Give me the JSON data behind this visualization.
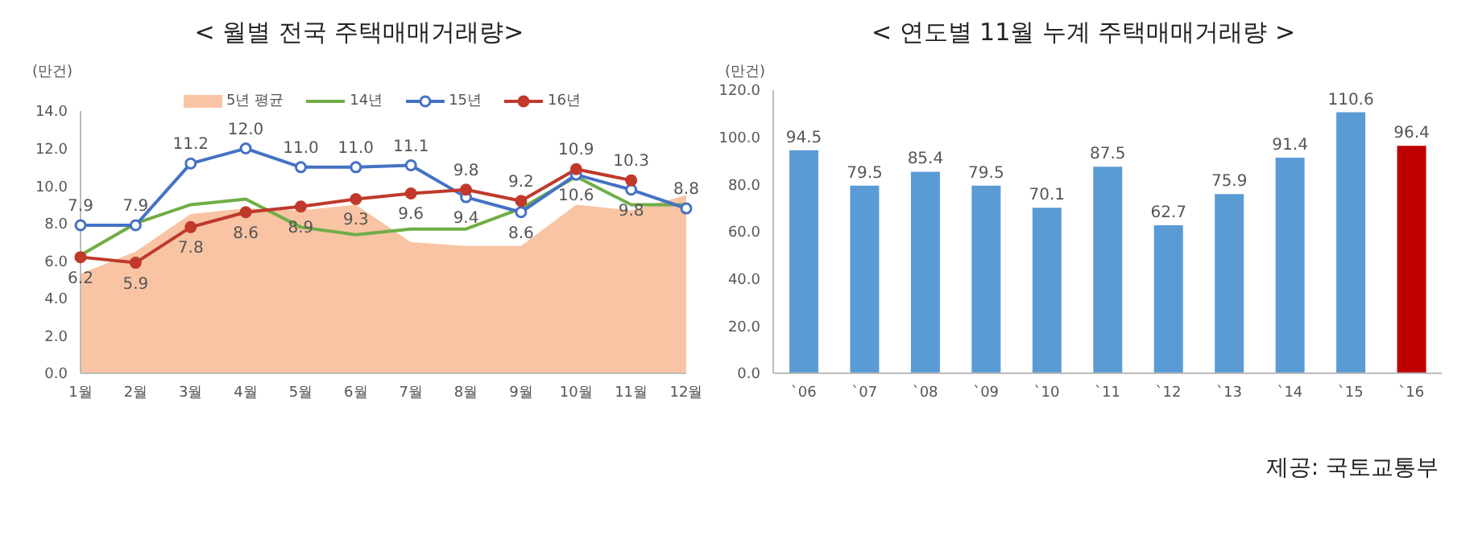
{
  "chart_data": [
    {
      "type": "line",
      "title": "< 월별 전국 주택매매거래량>",
      "ylabel": "(만건)",
      "categories": [
        "1월",
        "2월",
        "3월",
        "4월",
        "5월",
        "6월",
        "7월",
        "8월",
        "9월",
        "10월",
        "11월",
        "12월"
      ],
      "ylim": [
        0,
        14
      ],
      "yticks": [
        {
          "value": 0,
          "label": "0.0"
        },
        {
          "value": 2,
          "label": "2.0"
        },
        {
          "value": 4,
          "label": "4.0"
        },
        {
          "value": 6,
          "label": "6.0"
        },
        {
          "value": 8,
          "label": "8.0"
        },
        {
          "value": 10,
          "label": "10.0"
        },
        {
          "value": 12,
          "label": "12.0"
        },
        {
          "value": 14,
          "label": "14.0"
        }
      ],
      "legend": "top",
      "series": [
        {
          "name": "5년 평균",
          "type": "area",
          "color": "#f8c4a4",
          "values": [
            5.3,
            6.5,
            8.5,
            8.8,
            8.7,
            9.0,
            7.0,
            6.8,
            6.8,
            9.0,
            8.7,
            9.5
          ]
        },
        {
          "name": "14년",
          "type": "line",
          "color": "#70ad47",
          "marker": "none",
          "values": [
            6.3,
            8.0,
            9.0,
            9.3,
            7.8,
            7.4,
            7.7,
            7.7,
            8.8,
            10.5,
            9.0,
            9.0
          ]
        },
        {
          "name": "15년",
          "type": "line",
          "color": "#4472c4",
          "marker": "circle",
          "values": [
            7.9,
            7.9,
            11.2,
            12.0,
            11.0,
            11.0,
            11.1,
            9.4,
            8.6,
            10.6,
            9.8,
            8.8
          ],
          "value_labels": [
            "7.9",
            "7.9",
            "11.2",
            "12.0",
            "11.0",
            "11.0",
            "11.1",
            "9.4",
            "8.6",
            "10.6",
            "9.8",
            "8.8"
          ]
        },
        {
          "name": "16년",
          "type": "line",
          "color": "#c0392b",
          "marker": "circle",
          "values": [
            6.2,
            5.9,
            7.8,
            8.6,
            8.9,
            9.3,
            9.6,
            9.8,
            9.2,
            10.9,
            10.3,
            null
          ],
          "value_labels": [
            "6.2",
            "5.9",
            "7.8",
            "8.6",
            "8.9",
            "9.3",
            "9.6",
            "9.8",
            "9.2",
            "10.9",
            "10.3",
            null
          ]
        }
      ]
    },
    {
      "type": "bar",
      "title": "< 연도별 11월 누계 주택매매거래량 >",
      "ylabel": "(만건)",
      "categories": [
        "`06",
        "`07",
        "`08",
        "`09",
        "`10",
        "`11",
        "`12",
        "`13",
        "`14",
        "`15",
        "`16"
      ],
      "values": [
        94.5,
        79.5,
        85.4,
        79.5,
        70.1,
        87.5,
        62.7,
        75.9,
        91.4,
        110.6,
        96.4
      ],
      "colors": [
        "#5b9bd5",
        "#5b9bd5",
        "#5b9bd5",
        "#5b9bd5",
        "#5b9bd5",
        "#5b9bd5",
        "#5b9bd5",
        "#5b9bd5",
        "#5b9bd5",
        "#5b9bd5",
        "#c00000"
      ],
      "ylim": [
        0,
        120
      ],
      "yticks": [
        {
          "value": 0,
          "label": "0.0"
        },
        {
          "value": 20,
          "label": "20.0"
        },
        {
          "value": 40,
          "label": "40.0"
        },
        {
          "value": 60,
          "label": "60.0"
        },
        {
          "value": 80,
          "label": "80.0"
        },
        {
          "value": 100,
          "label": "100.0"
        },
        {
          "value": 120,
          "label": "120.0"
        }
      ],
      "data_labels": true,
      "annotations": [
        "제공: 국토교통부"
      ]
    }
  ]
}
